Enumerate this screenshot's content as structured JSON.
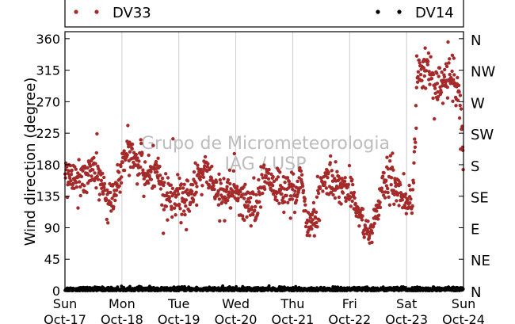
{
  "chart_data": {
    "type": "scatter",
    "ylabel": "Wind direction (degree)",
    "ylim": [
      0,
      370
    ],
    "yticks": [
      0,
      45,
      90,
      135,
      180,
      225,
      270,
      315,
      360
    ],
    "yticks_right": [
      "N",
      "NE",
      "E",
      "SE",
      "S",
      "SW",
      "W",
      "NW",
      "N"
    ],
    "xlim": [
      0,
      7
    ],
    "xticks": [
      {
        "day": "Sun",
        "date": "Oct-17"
      },
      {
        "day": "Mon",
        "date": "Oct-18"
      },
      {
        "day": "Tue",
        "date": "Oct-19"
      },
      {
        "day": "Wed",
        "date": "Oct-20"
      },
      {
        "day": "Thu",
        "date": "Oct-21"
      },
      {
        "day": "Fri",
        "date": "Oct-22"
      },
      {
        "day": "Sat",
        "date": "Oct-23"
      },
      {
        "day": "Sun",
        "date": "Oct-24"
      }
    ],
    "grid_x": true,
    "legend_position": "top",
    "watermark": [
      "Grupo de Micrometeorologia",
      "IAG / USP"
    ],
    "series": [
      {
        "name": "DV33",
        "color": "#a52a2a",
        "profile": [
          [
            0.0,
            160
          ],
          [
            0.15,
            170
          ],
          [
            0.3,
            160
          ],
          [
            0.45,
            175
          ],
          [
            0.6,
            160
          ],
          [
            0.75,
            130
          ],
          [
            0.9,
            140
          ],
          [
            1.0,
            175
          ],
          [
            1.1,
            200
          ],
          [
            1.25,
            190
          ],
          [
            1.45,
            160
          ],
          [
            1.6,
            170
          ],
          [
            1.8,
            135
          ],
          [
            1.95,
            140
          ],
          [
            2.1,
            125
          ],
          [
            2.3,
            150
          ],
          [
            2.5,
            175
          ],
          [
            2.65,
            140
          ],
          [
            2.8,
            130
          ],
          [
            3.0,
            145
          ],
          [
            3.2,
            125
          ],
          [
            3.35,
            115
          ],
          [
            3.5,
            170
          ],
          [
            3.65,
            150
          ],
          [
            3.85,
            140
          ],
          [
            4.0,
            145
          ],
          [
            4.15,
            160
          ],
          [
            4.25,
            90
          ],
          [
            4.4,
            105
          ],
          [
            4.5,
            150
          ],
          [
            4.65,
            160
          ],
          [
            4.85,
            150
          ],
          [
            5.05,
            140
          ],
          [
            5.2,
            100
          ],
          [
            5.35,
            80
          ],
          [
            5.45,
            100
          ],
          [
            5.55,
            145
          ],
          [
            5.7,
            160
          ],
          [
            5.85,
            145
          ],
          [
            6.0,
            130
          ],
          [
            6.1,
            130
          ],
          [
            6.2,
            310
          ],
          [
            6.35,
            325
          ],
          [
            6.5,
            290
          ],
          [
            6.65,
            300
          ],
          [
            6.8,
            310
          ],
          [
            6.95,
            260
          ],
          [
            7.0,
            190
          ]
        ],
        "spread": 14,
        "n_points": 1100
      },
      {
        "name": "DV14",
        "color": "#000000",
        "profile": [
          [
            0.0,
            2
          ],
          [
            7.0,
            2
          ]
        ],
        "spread": 1.6,
        "n_points": 1400
      }
    ]
  }
}
